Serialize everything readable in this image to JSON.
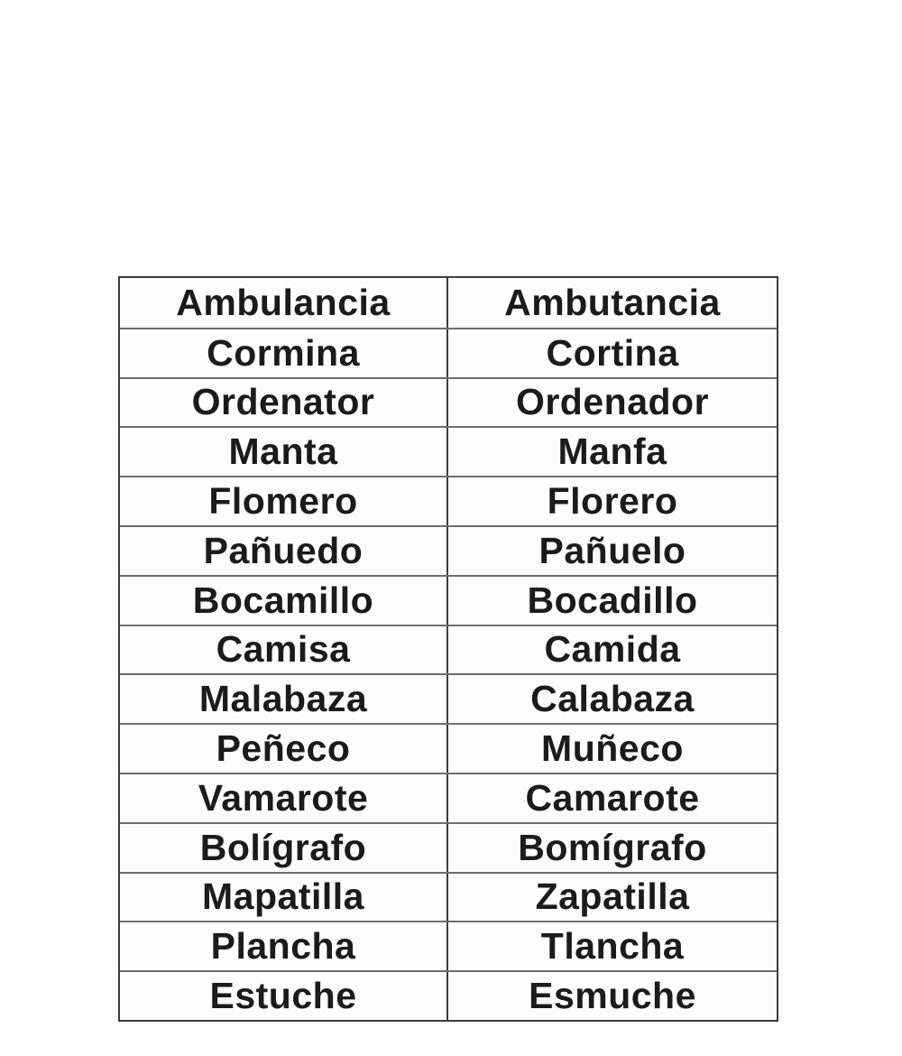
{
  "page": {
    "background_color": "#ffffff",
    "text_color": "#1b1b1b",
    "outer_border_color": "#3d3d3d",
    "inner_line_color": "#6e6e6e"
  },
  "table": {
    "columns": 2,
    "row_count": 15,
    "rows": [
      {
        "left": "Ambulancia",
        "right": "Ambutancia"
      },
      {
        "left": "Cormina",
        "right": "Cortina"
      },
      {
        "left": "Ordenator",
        "right": "Ordenador"
      },
      {
        "left": "Manta",
        "right": "Manfa"
      },
      {
        "left": "Flomero",
        "right": "Florero"
      },
      {
        "left": "Pañuedo",
        "right": "Pañuelo"
      },
      {
        "left": "Bocamillo",
        "right": "Bocadillo"
      },
      {
        "left": "Camisa",
        "right": "Camida"
      },
      {
        "left": "Malabaza",
        "right": "Calabaza"
      },
      {
        "left": "Peñeco",
        "right": "Muñeco"
      },
      {
        "left": "Vamarote",
        "right": "Camarote"
      },
      {
        "left": "Bolígrafo",
        "right": "Bomígrafo"
      },
      {
        "left": "Mapatilla",
        "right": "Zapatilla"
      },
      {
        "left": "Plancha",
        "right": "Tlancha"
      },
      {
        "left": "Estuche",
        "right": "Esmuche"
      }
    ]
  }
}
